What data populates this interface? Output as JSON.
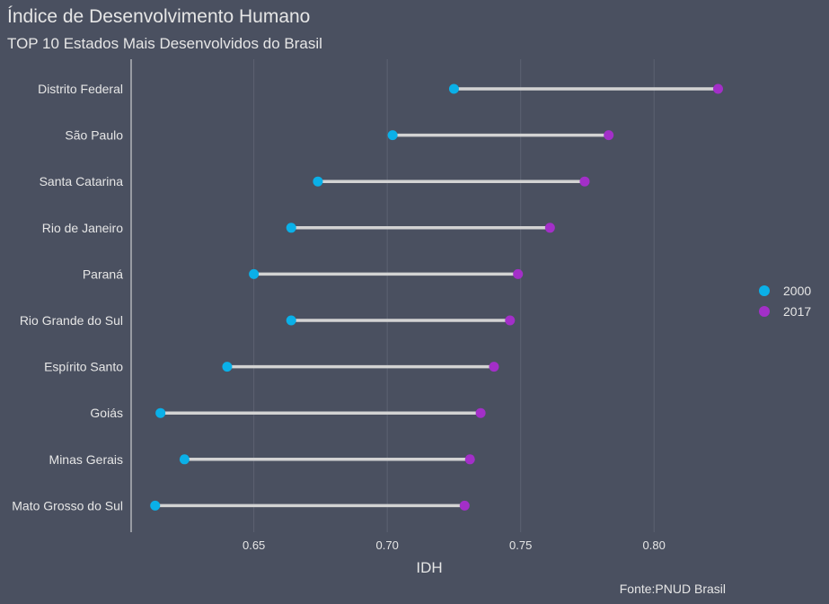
{
  "chart_data": {
    "type": "dumbbell",
    "title": "Índice de Desenvolvimento Humano",
    "subtitle": "TOP 10 Estados Mais Desenvolvidos do Brasil",
    "xlabel": "IDH",
    "caption": "Fonte:PNUD Brasil",
    "xlim": [
      0.604,
      0.841
    ],
    "xticks": [
      "0.65",
      "0.70",
      "0.75",
      "0.80"
    ],
    "categories": [
      "Distrito Federal",
      "São Paulo",
      "Santa Catarina",
      "Rio de Janeiro",
      "Paraná",
      "Rio Grande do Sul",
      "Espírito Santo",
      "Goiás",
      "Minas Gerais",
      "Mato Grosso do Sul"
    ],
    "series": [
      {
        "name": "2000",
        "color": "#0ab0e8",
        "values": [
          0.725,
          0.702,
          0.674,
          0.664,
          0.65,
          0.664,
          0.64,
          0.615,
          0.624,
          0.613
        ]
      },
      {
        "name": "2017",
        "color": "#a32fc8",
        "values": [
          0.824,
          0.783,
          0.774,
          0.761,
          0.749,
          0.746,
          0.74,
          0.735,
          0.731,
          0.729
        ]
      }
    ],
    "legend_position": "right",
    "grid": true
  },
  "colors": {
    "background": "#4a5060",
    "segment": "#d3d3d3",
    "text": "#e6e6e6",
    "grid": "#5c6272"
  }
}
